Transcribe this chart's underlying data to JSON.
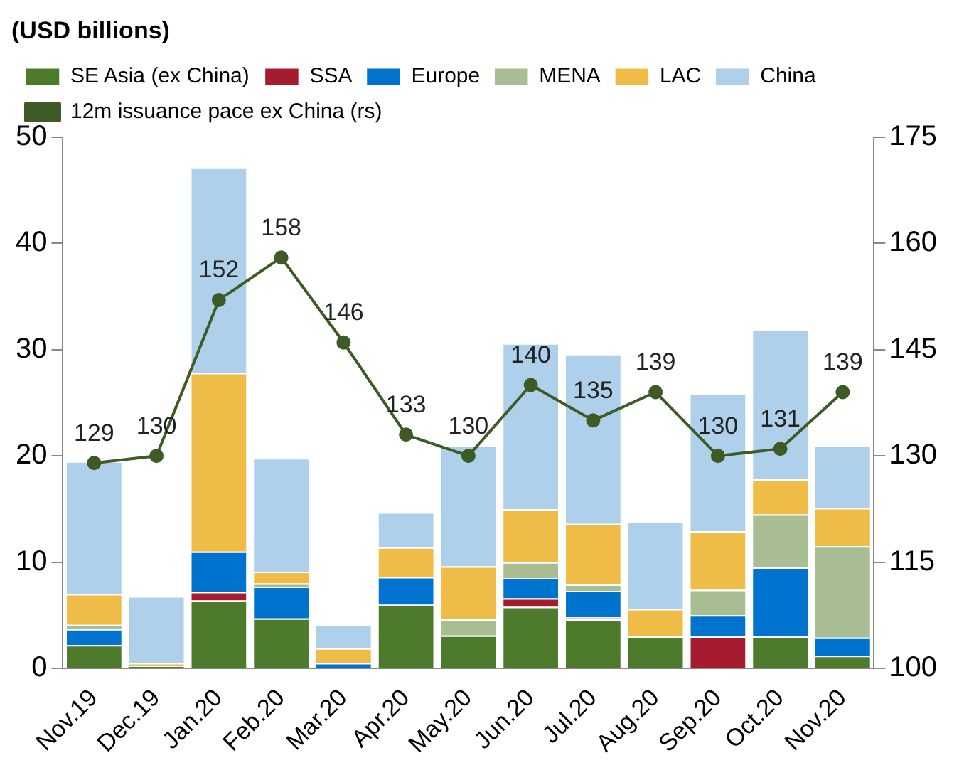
{
  "chart_data": {
    "type": "bar",
    "title": "(USD billions)",
    "stacked": true,
    "categories": [
      "Nov.19",
      "Dec.19",
      "Jan.20",
      "Feb.20",
      "Mar.20",
      "Apr.20",
      "May.20",
      "Jun.20",
      "Jul.20",
      "Aug.20",
      "Sep.20",
      "Oct.20",
      "Nov.20"
    ],
    "series": [
      {
        "name": "SE Asia (ex China)",
        "color": "#4e7a2c",
        "values": [
          2.2,
          0.2,
          6.4,
          4.7,
          null,
          6.0,
          3.1,
          5.8,
          4.6,
          3.0,
          null,
          3.0,
          1.2
        ]
      },
      {
        "name": "SSA",
        "color": "#a51c30",
        "values": [
          0,
          0,
          0.8,
          0,
          0,
          0,
          0,
          0.8,
          0.2,
          0,
          3.0,
          0,
          0
        ]
      },
      {
        "name": "Europe",
        "color": "#0073cf",
        "values": [
          1.5,
          0,
          3.8,
          3.0,
          0.5,
          2.6,
          0,
          1.9,
          2.5,
          0,
          2.0,
          6.5,
          1.7
        ]
      },
      {
        "name": "MENA",
        "color": "#a8bd93",
        "values": [
          0.4,
          0,
          0,
          0.3,
          0,
          0,
          1.5,
          1.5,
          0.6,
          0,
          2.4,
          5.0,
          8.6
        ]
      },
      {
        "name": "LAC",
        "color": "#f0bc48",
        "values": [
          2.9,
          0.3,
          16.8,
          1.1,
          1.4,
          2.8,
          5.0,
          5.0,
          5.7,
          2.6,
          5.5,
          3.3,
          3.6
        ]
      },
      {
        "name": "China",
        "color": "#aed0ea",
        "values": [
          12.5,
          6.3,
          19.4,
          10.7,
          2.2,
          3.3,
          11.4,
          15.6,
          16.0,
          8.2,
          13.0,
          14.1,
          5.9
        ]
      },
      {
        "name": "12m issuance pace ex China (rs)",
        "type": "line",
        "axis": "y2",
        "color": "#3e5a25",
        "marker": "circle",
        "values": [
          129,
          130,
          152,
          158,
          146,
          133,
          130,
          140,
          135,
          139,
          130,
          131,
          139
        ],
        "value_labels": [
          "129",
          "130",
          "152",
          "158",
          "146",
          "133",
          "130",
          "140",
          "135",
          "139",
          "130",
          "131",
          "139"
        ]
      }
    ],
    "ylim": [
      0,
      50
    ],
    "yticks": [
      0,
      10,
      20,
      30,
      40,
      50
    ],
    "y2lim": [
      100,
      175
    ],
    "y2ticks": [
      100,
      115,
      130,
      145,
      160,
      175
    ],
    "grid": false,
    "legend": "top"
  }
}
